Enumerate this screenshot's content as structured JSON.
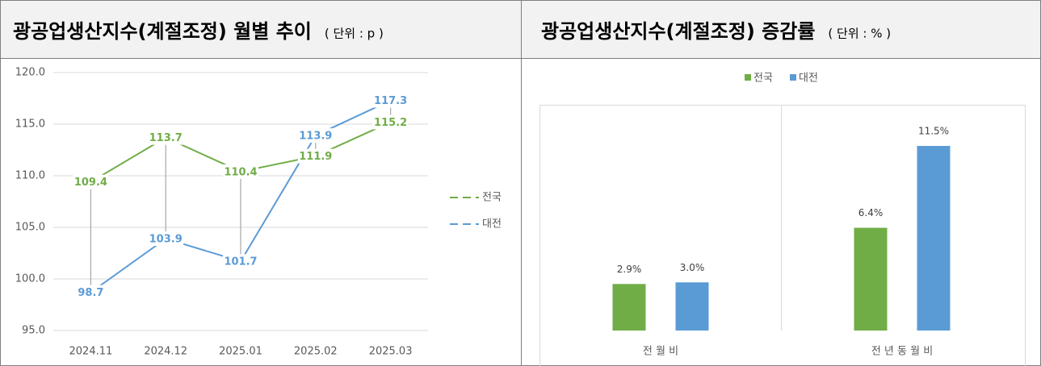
{
  "chart_data": [
    {
      "type": "line",
      "title": "광공업생산지수(계절조정) 월별 추이",
      "subtitle": "( 단위 : p )",
      "categories": [
        "2024.11",
        "2024.12",
        "2025.01",
        "2025.02",
        "2025.03"
      ],
      "series": [
        {
          "name": "전국",
          "color": "#70ad47",
          "values": [
            109.4,
            113.7,
            110.4,
            111.9,
            115.2
          ]
        },
        {
          "name": "대전",
          "color": "#5b9bd5",
          "values": [
            98.7,
            103.9,
            101.7,
            113.9,
            117.3
          ]
        }
      ],
      "ylim": [
        95,
        120
      ],
      "yticks": [
        {
          "value": 95,
          "label": "95.0"
        },
        {
          "value": 100,
          "label": "100.0"
        },
        {
          "value": 105,
          "label": "105.0"
        },
        {
          "value": 110,
          "label": "110.0"
        },
        {
          "value": 115,
          "label": "115.0"
        },
        {
          "value": 120,
          "label": "120.0"
        }
      ],
      "grid": true,
      "high_low_lines": true,
      "legend": "right"
    },
    {
      "type": "bar",
      "title": "광공업생산지수(계절조정) 증감률",
      "subtitle": "( 단위 : % )",
      "categories": [
        "전 월 비",
        "전 년 동 월 비"
      ],
      "series": [
        {
          "name": "전국",
          "color": "#70ad47",
          "values": [
            2.9,
            6.4
          ],
          "value_labels": [
            "2.9%",
            "6.4%"
          ]
        },
        {
          "name": "대전",
          "color": "#5b9bd5",
          "values": [
            3.0,
            11.5
          ],
          "value_labels": [
            "3.0%",
            "11.5%"
          ]
        }
      ],
      "legend": "top"
    }
  ]
}
